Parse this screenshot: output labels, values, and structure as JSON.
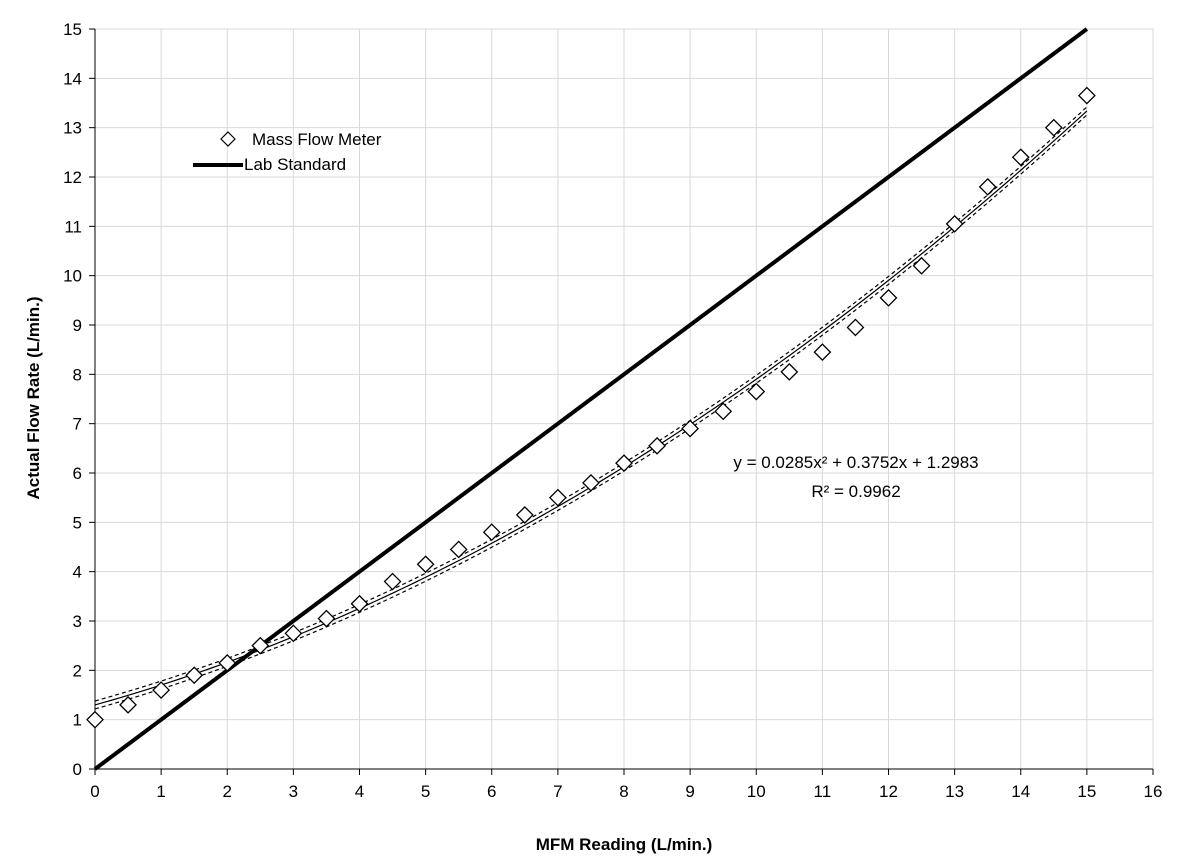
{
  "chart_data": {
    "type": "scatter",
    "title": "",
    "xlabel": "MFM Reading (L/min.)",
    "ylabel": "Actual Flow Rate (L/min.)",
    "xlim": [
      0,
      16
    ],
    "ylim": [
      0,
      15
    ],
    "xticks": [
      "0",
      "1",
      "2",
      "3",
      "4",
      "5",
      "6",
      "7",
      "8",
      "9",
      "10",
      "11",
      "12",
      "13",
      "14",
      "15",
      "16"
    ],
    "yticks": [
      "0",
      "1",
      "2",
      "3",
      "4",
      "5",
      "6",
      "7",
      "8",
      "9",
      "10",
      "11",
      "12",
      "13",
      "14",
      "15"
    ],
    "grid": true,
    "legend_position": "top-left",
    "series": [
      {
        "name": "Mass Flow Meter",
        "kind": "scatter",
        "marker": "diamond",
        "x": [
          0,
          0.5,
          1,
          1.5,
          2,
          2.5,
          3,
          3.5,
          4,
          4.5,
          5,
          5.5,
          6,
          6.5,
          7,
          7.5,
          8,
          8.5,
          9,
          9.5,
          10,
          10.5,
          11,
          11.5,
          12,
          12.5,
          13,
          13.5,
          14,
          14.5,
          15
        ],
        "y": [
          1.0,
          1.3,
          1.6,
          1.9,
          2.15,
          2.5,
          2.75,
          3.05,
          3.35,
          3.8,
          4.15,
          4.45,
          4.8,
          5.15,
          5.5,
          5.8,
          6.2,
          6.55,
          6.9,
          7.25,
          7.65,
          8.05,
          8.45,
          8.95,
          9.55,
          10.2,
          11.05,
          11.8,
          12.4,
          13.0,
          13.65
        ]
      },
      {
        "name": "Lab Standard",
        "kind": "line",
        "x": [
          0,
          15
        ],
        "y": [
          0,
          15
        ]
      }
    ],
    "trendline": {
      "type": "polynomial",
      "coefficients": [
        0.0285,
        0.3752,
        1.2983
      ],
      "x_range": [
        0,
        15
      ],
      "confidence_band": 0.08,
      "equation": "y = 0.0285x² + 0.3752x + 1.2983",
      "r_squared": "R² = 0.9962"
    },
    "colors": {
      "axis": "#000000",
      "grid": "#d9d9d9",
      "line": "#000000",
      "marker_stroke": "#000000",
      "marker_fill": "#ffffff"
    }
  }
}
